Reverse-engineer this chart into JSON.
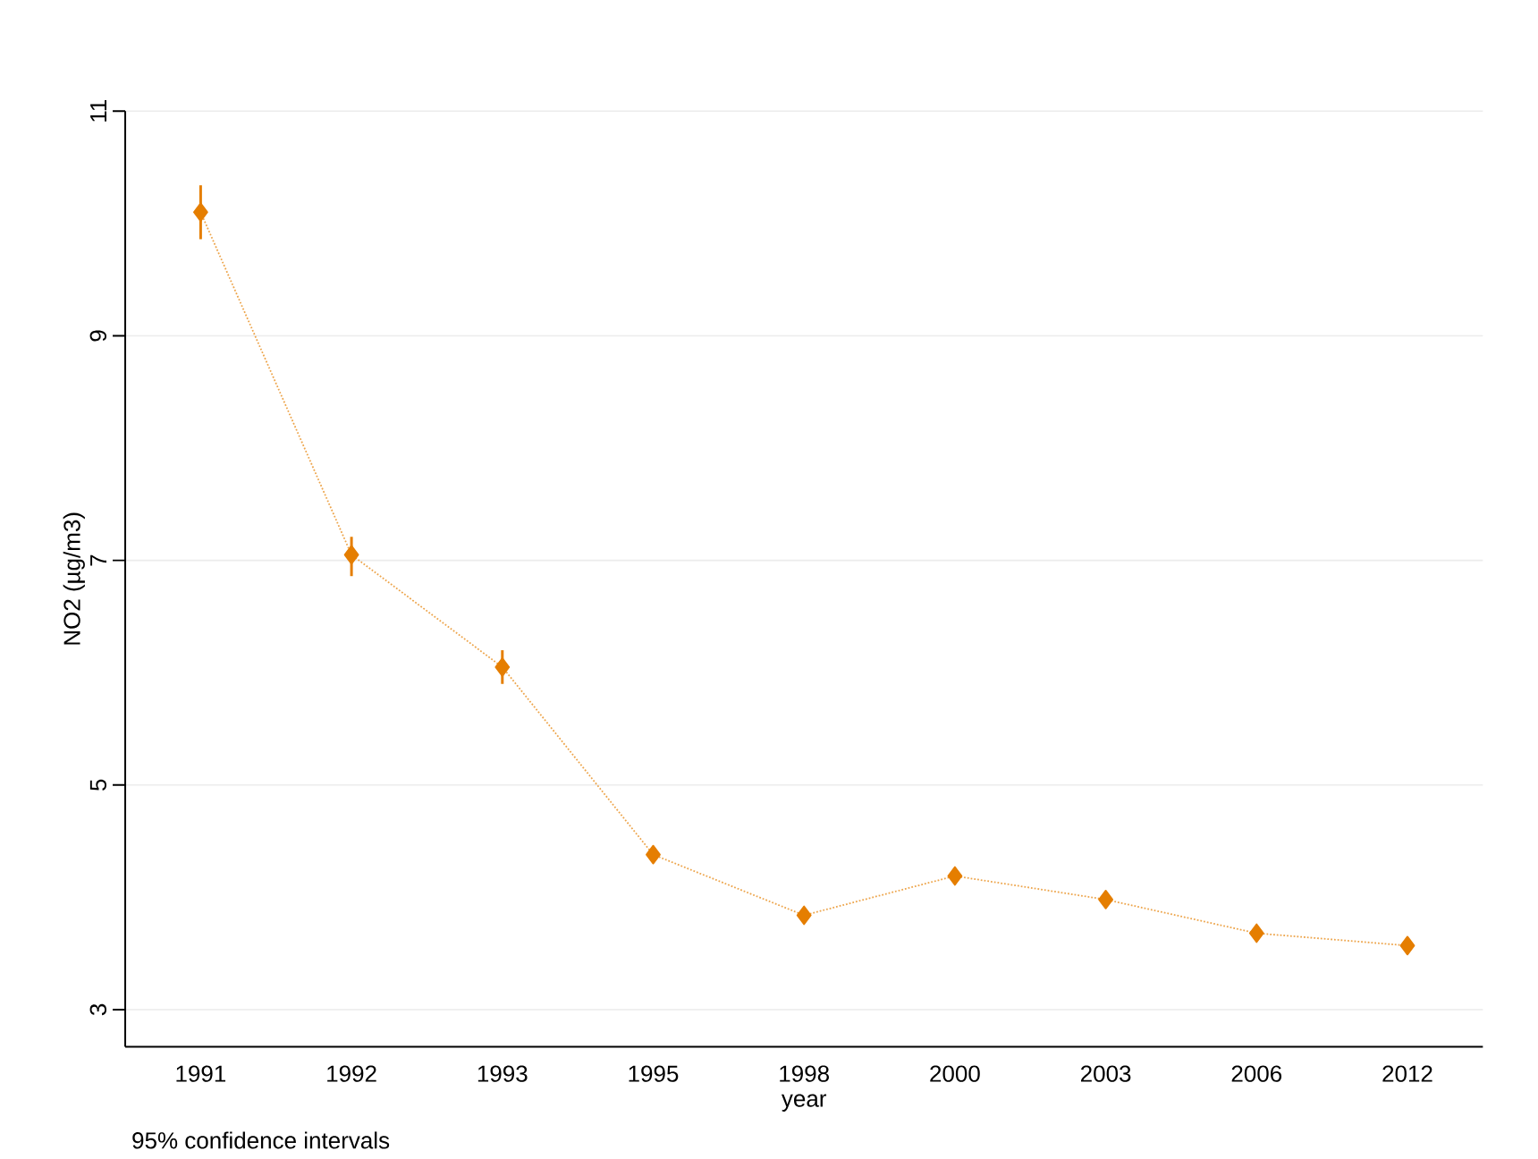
{
  "chart_data": {
    "type": "line",
    "xlabel": "year",
    "ylabel": "NO2 (µg/m3)",
    "categories": [
      "1991",
      "1992",
      "1993",
      "1995",
      "1998",
      "2000",
      "2003",
      "2006",
      "2012"
    ],
    "series": [
      {
        "color": "#e57e00",
        "values": [
          10.1,
          7.05,
          6.05,
          4.38,
          3.84,
          4.19,
          3.98,
          3.68,
          3.57
        ],
        "errors": [
          [
            9.86,
            10.34
          ],
          [
            6.86,
            7.21
          ],
          [
            5.9,
            6.2
          ],
          [
            4.31,
            4.45
          ],
          null,
          [
            4.12,
            4.26
          ],
          null,
          null,
          null
        ]
      }
    ],
    "ylim": [
      2.67,
      11
    ],
    "yticks": [
      3,
      5,
      7,
      9,
      11
    ],
    "grid": "y",
    "marker": "diamond",
    "line_style": "dotted",
    "annotations": [
      "95% confidence intervals"
    ]
  }
}
